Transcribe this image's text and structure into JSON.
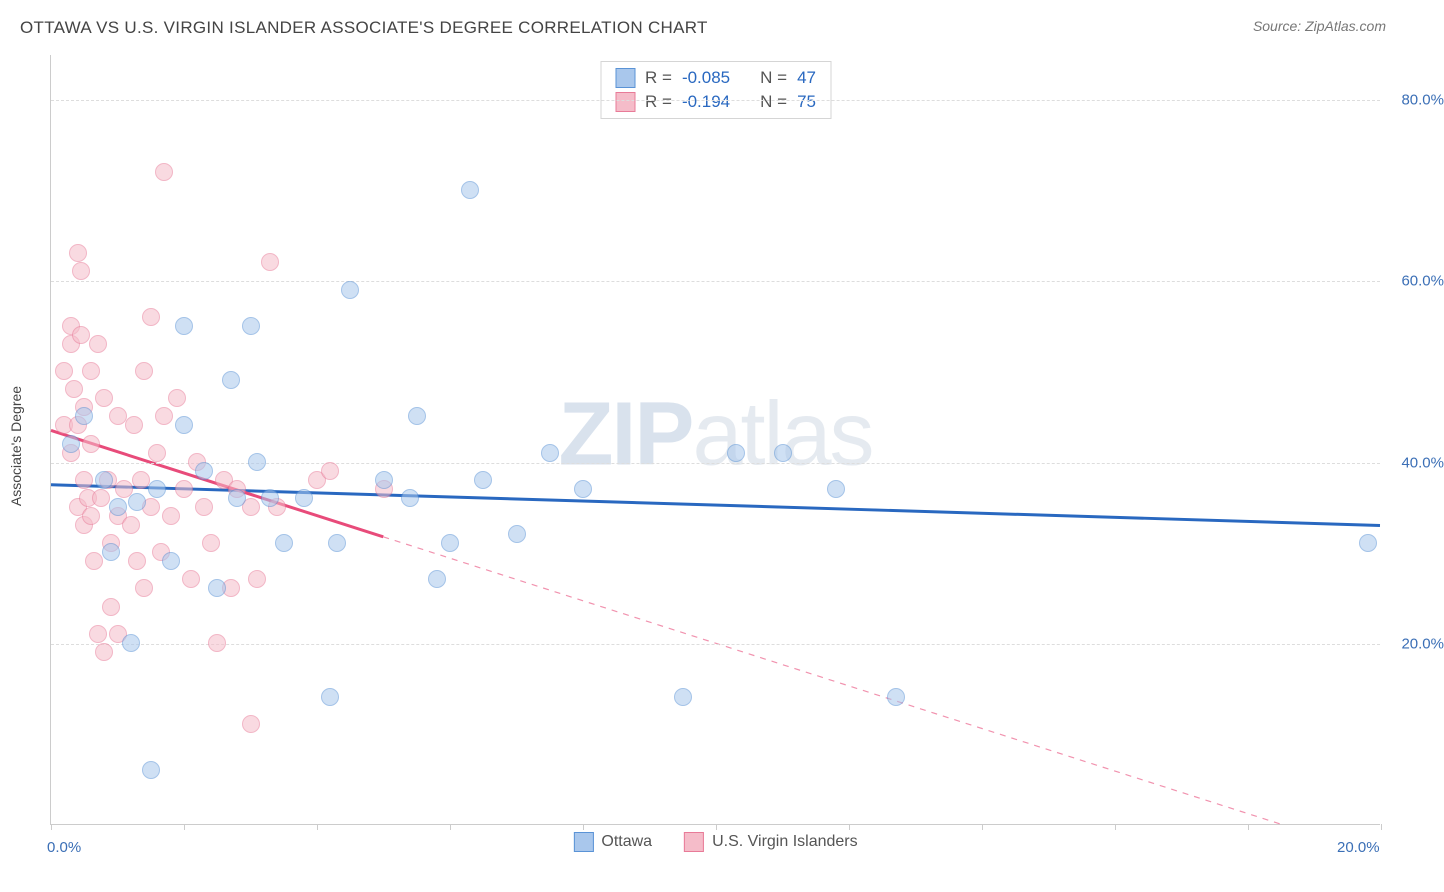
{
  "header": {
    "title": "OTTAWA VS U.S. VIRGIN ISLANDER ASSOCIATE'S DEGREE CORRELATION CHART",
    "source_prefix": "Source: ",
    "source": "ZipAtlas.com"
  },
  "chart": {
    "type": "scatter",
    "ylabel": "Associate's Degree",
    "watermark_bold": "ZIP",
    "watermark_light": "atlas",
    "background_color": "#ffffff",
    "grid_color": "#dddddd",
    "axis_color": "#cccccc",
    "xlim": [
      0,
      20
    ],
    "ylim": [
      0,
      85
    ],
    "x_ticks": [
      0,
      2,
      4,
      6,
      8,
      10,
      12,
      14,
      16,
      18,
      20
    ],
    "x_tick_labels": {
      "0": "0.0%",
      "20": "20.0%"
    },
    "y_ticks": [
      20,
      40,
      60,
      80
    ],
    "y_tick_labels": {
      "20": "20.0%",
      "40": "40.0%",
      "60": "60.0%",
      "80": "80.0%"
    },
    "marker_radius": 9,
    "marker_opacity": 0.55,
    "label_fontsize": 15,
    "label_color": "#3b6fb6",
    "series": [
      {
        "name": "Ottawa",
        "fill": "#a9c7ec",
        "stroke": "#5a93d6",
        "line_color": "#2968c0",
        "r_label": "R =",
        "r_value": "-0.085",
        "n_label": "N =",
        "n_value": "47",
        "trend": {
          "x1": 0,
          "y1": 37.5,
          "x2": 20,
          "y2": 33.0,
          "solid_until_x": 20
        },
        "points": [
          [
            0.3,
            42
          ],
          [
            0.5,
            45
          ],
          [
            0.8,
            38
          ],
          [
            0.9,
            30
          ],
          [
            1.0,
            35
          ],
          [
            1.2,
            20
          ],
          [
            1.3,
            35.5
          ],
          [
            1.5,
            6
          ],
          [
            1.6,
            37
          ],
          [
            1.8,
            29
          ],
          [
            2.0,
            55
          ],
          [
            2.0,
            44
          ],
          [
            2.3,
            39
          ],
          [
            2.5,
            26
          ],
          [
            2.7,
            49
          ],
          [
            2.8,
            36
          ],
          [
            3.0,
            55
          ],
          [
            3.1,
            40
          ],
          [
            3.3,
            36
          ],
          [
            3.5,
            31
          ],
          [
            3.8,
            36
          ],
          [
            4.2,
            14
          ],
          [
            4.3,
            31
          ],
          [
            4.5,
            59
          ],
          [
            5.0,
            38
          ],
          [
            5.4,
            36
          ],
          [
            5.5,
            45
          ],
          [
            5.8,
            27
          ],
          [
            6.0,
            31
          ],
          [
            6.3,
            70
          ],
          [
            6.5,
            38
          ],
          [
            7.0,
            32
          ],
          [
            7.5,
            41
          ],
          [
            8.0,
            37
          ],
          [
            9.5,
            14
          ],
          [
            10.3,
            41
          ],
          [
            11.0,
            41
          ],
          [
            11.8,
            37
          ],
          [
            12.7,
            14
          ],
          [
            19.8,
            31
          ]
        ]
      },
      {
        "name": "U.S. Virgin Islanders",
        "fill": "#f5bcc9",
        "stroke": "#e87b98",
        "line_color": "#e84b7a",
        "r_label": "R =",
        "r_value": "-0.194",
        "n_label": "N =",
        "n_value": "75",
        "trend": {
          "x1": 0,
          "y1": 43.5,
          "x2": 18.5,
          "y2": 0,
          "solid_until_x": 5.0
        },
        "points": [
          [
            0.2,
            44
          ],
          [
            0.2,
            50
          ],
          [
            0.3,
            53
          ],
          [
            0.3,
            55
          ],
          [
            0.3,
            41
          ],
          [
            0.35,
            48
          ],
          [
            0.4,
            44
          ],
          [
            0.4,
            35
          ],
          [
            0.4,
            63
          ],
          [
            0.45,
            61
          ],
          [
            0.45,
            54
          ],
          [
            0.5,
            46
          ],
          [
            0.5,
            38
          ],
          [
            0.5,
            33
          ],
          [
            0.55,
            36
          ],
          [
            0.6,
            50
          ],
          [
            0.6,
            42
          ],
          [
            0.6,
            34
          ],
          [
            0.65,
            29
          ],
          [
            0.7,
            53
          ],
          [
            0.7,
            21
          ],
          [
            0.75,
            36
          ],
          [
            0.8,
            47
          ],
          [
            0.8,
            19
          ],
          [
            0.85,
            38
          ],
          [
            0.9,
            31
          ],
          [
            0.9,
            24
          ],
          [
            1.0,
            45
          ],
          [
            1.0,
            34
          ],
          [
            1.0,
            21
          ],
          [
            1.1,
            37
          ],
          [
            1.2,
            33
          ],
          [
            1.25,
            44
          ],
          [
            1.3,
            29
          ],
          [
            1.35,
            38
          ],
          [
            1.4,
            50
          ],
          [
            1.4,
            26
          ],
          [
            1.5,
            56
          ],
          [
            1.5,
            35
          ],
          [
            1.6,
            41
          ],
          [
            1.65,
            30
          ],
          [
            1.7,
            45
          ],
          [
            1.7,
            72
          ],
          [
            1.8,
            34
          ],
          [
            1.9,
            47
          ],
          [
            2.0,
            37
          ],
          [
            2.1,
            27
          ],
          [
            2.2,
            40
          ],
          [
            2.3,
            35
          ],
          [
            2.4,
            31
          ],
          [
            2.5,
            20
          ],
          [
            2.6,
            38
          ],
          [
            2.7,
            26
          ],
          [
            2.8,
            37
          ],
          [
            3.0,
            11
          ],
          [
            3.0,
            35
          ],
          [
            3.1,
            27
          ],
          [
            3.3,
            62
          ],
          [
            3.4,
            35
          ],
          [
            4.0,
            38
          ],
          [
            4.2,
            39
          ],
          [
            5.0,
            37
          ]
        ]
      }
    ],
    "bottom_legend": [
      {
        "label": "Ottawa",
        "fill": "#a9c7ec",
        "stroke": "#5a93d6"
      },
      {
        "label": "U.S. Virgin Islanders",
        "fill": "#f5bcc9",
        "stroke": "#e87b98"
      }
    ]
  }
}
